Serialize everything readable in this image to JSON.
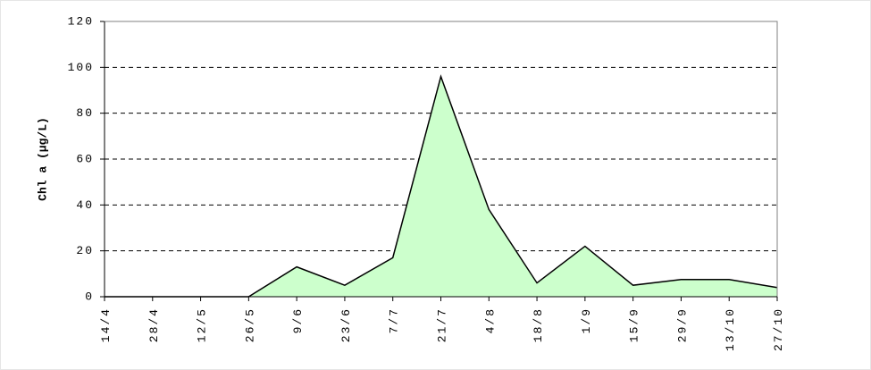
{
  "chart_data": {
    "type": "area",
    "y_label": "Chl a (μg/L)",
    "categories": [
      "14/4",
      "28/4",
      "12/5",
      "26/5",
      "9/6",
      "23/6",
      "7/7",
      "21/7",
      "4/8",
      "18/8",
      "1/9",
      "15/9",
      "29/9",
      "13/10",
      "27/10"
    ],
    "values": [
      0,
      0,
      0,
      0,
      13,
      5,
      17,
      96,
      38,
      6,
      22,
      5,
      7.5,
      7.5,
      4
    ],
    "color": "#ccffcc",
    "line_color": "#000000",
    "ylim": [
      0,
      120
    ],
    "yticks": [
      0,
      20,
      40,
      60,
      80,
      100,
      120
    ],
    "grid": true
  }
}
